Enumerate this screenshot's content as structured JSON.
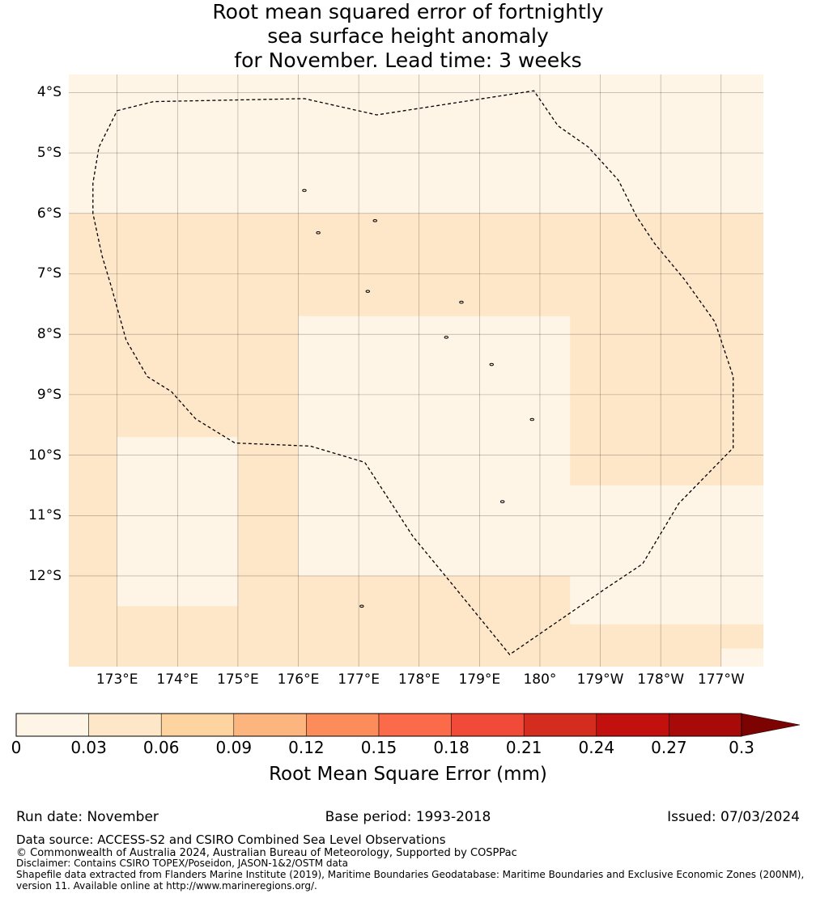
{
  "title": {
    "line1": "Root mean squared error of fortnightly",
    "line2": "sea surface height anomaly",
    "line3": "for November. Lead time: 3 weeks"
  },
  "map": {
    "lon_range": [
      172.2,
      183.7
    ],
    "lat_range": [
      -13.5,
      -3.7
    ],
    "lat_labels": [
      {
        "lat": -4,
        "text": "4°S"
      },
      {
        "lat": -5,
        "text": "5°S"
      },
      {
        "lat": -6,
        "text": "6°S"
      },
      {
        "lat": -7,
        "text": "7°S"
      },
      {
        "lat": -8,
        "text": "8°S"
      },
      {
        "lat": -9,
        "text": "9°S"
      },
      {
        "lat": -10,
        "text": "10°S"
      },
      {
        "lat": -11,
        "text": "11°S"
      },
      {
        "lat": -12,
        "text": "12°S"
      }
    ],
    "lon_labels": [
      {
        "lon": 173,
        "text": "173°E"
      },
      {
        "lon": 174,
        "text": "174°E"
      },
      {
        "lon": 175,
        "text": "175°E"
      },
      {
        "lon": 176,
        "text": "176°E"
      },
      {
        "lon": 177,
        "text": "177°E"
      },
      {
        "lon": 178,
        "text": "178°E"
      },
      {
        "lon": 179,
        "text": "179°E"
      },
      {
        "lon": 180,
        "text": "180°"
      },
      {
        "lon": 181,
        "text": "179°W"
      },
      {
        "lon": 182,
        "text": "178°W"
      },
      {
        "lon": 183,
        "text": "177°W"
      }
    ],
    "rmse_field": {
      "background_class": 0,
      "elevated_regions": [
        {
          "lon": [
            172.2,
            183.7
          ],
          "lat": [
            -13.5,
            -6.0
          ],
          "class": 1
        },
        {
          "lon": [
            173.0,
            175.0
          ],
          "lat": [
            -12.5,
            -9.7
          ],
          "class": 0
        },
        {
          "lon": [
            176.0,
            180.5
          ],
          "lat": [
            -12.0,
            -7.7
          ],
          "class": 0
        },
        {
          "lon": [
            180.5,
            183.7
          ],
          "lat": [
            -12.8,
            -10.5
          ],
          "class": 0
        },
        {
          "lon": [
            183.0,
            183.7
          ],
          "lat": [
            -13.5,
            -13.2
          ],
          "class": 0
        }
      ]
    },
    "eez_boundary": [
      [
        173.0,
        -4.3
      ],
      [
        173.6,
        -4.15
      ],
      [
        176.1,
        -4.1
      ],
      [
        177.3,
        -4.37
      ],
      [
        179.9,
        -3.97
      ],
      [
        180.3,
        -4.55
      ],
      [
        180.8,
        -4.9
      ],
      [
        181.3,
        -5.45
      ],
      [
        181.6,
        -6.05
      ],
      [
        181.9,
        -6.5
      ],
      [
        182.4,
        -7.1
      ],
      [
        182.9,
        -7.8
      ],
      [
        183.2,
        -8.7
      ],
      [
        183.2,
        -9.88
      ],
      [
        182.3,
        -10.8
      ],
      [
        181.7,
        -11.8
      ],
      [
        181.1,
        -12.2
      ],
      [
        179.5,
        -13.3
      ],
      [
        178.6,
        -12.2
      ],
      [
        177.9,
        -11.35
      ],
      [
        177.1,
        -10.12
      ],
      [
        176.2,
        -9.85
      ],
      [
        174.95,
        -9.8
      ],
      [
        174.3,
        -9.4
      ],
      [
        173.9,
        -8.95
      ],
      [
        173.5,
        -8.7
      ],
      [
        173.15,
        -8.1
      ],
      [
        172.9,
        -7.2
      ],
      [
        172.75,
        -6.7
      ],
      [
        172.6,
        -6.0
      ],
      [
        172.6,
        -5.5
      ],
      [
        172.7,
        -4.9
      ],
      [
        173.0,
        -4.3
      ]
    ],
    "islands": [
      [
        176.1,
        -5.62
      ],
      [
        176.33,
        -6.32
      ],
      [
        177.27,
        -6.12
      ],
      [
        177.15,
        -7.29
      ],
      [
        178.7,
        -7.47
      ],
      [
        178.45,
        -8.05
      ],
      [
        179.2,
        -8.5
      ],
      [
        179.87,
        -9.41
      ],
      [
        179.38,
        -10.77
      ],
      [
        177.05,
        -12.5
      ]
    ]
  },
  "colorbar": {
    "colors": [
      "#fff5e6",
      "#fee6c9",
      "#fdd4a0",
      "#fdb57f",
      "#fc8d5a",
      "#fb6b49",
      "#f24a39",
      "#d42c1e",
      "#c1100d",
      "#a80a0a",
      "#7d0303"
    ],
    "ticks": [
      "0",
      "0.03",
      "0.06",
      "0.09",
      "0.12",
      "0.15",
      "0.18",
      "0.21",
      "0.24",
      "0.27",
      "0.3"
    ],
    "label": "Root Mean Square Error (mm)"
  },
  "footer": {
    "run_date": "Run date: November",
    "base_period": "Base period: 1993-2018",
    "issued": "Issued: 07/03/2024",
    "data_source": "Data source: ACCESS-S2 and CSIRO Combined Sea Level Observations",
    "copyright": "© Commonwealth of Australia 2024, Australian Bureau of Meteorology, Supported by COSPPac",
    "disclaimer": "Disclaimer: Contains CSIRO TOPEX/Poseidon, JASON-1&2/OSTM data",
    "shapefile": "Shapefile data extracted from Flanders Marine Institute (2019), Maritime Boundaries Geodatabase: Maritime Boundaries and Exclusive Economic Zones (200NM),",
    "shapefile2": "version 11. Available online at http://www.marineregions.org/."
  }
}
